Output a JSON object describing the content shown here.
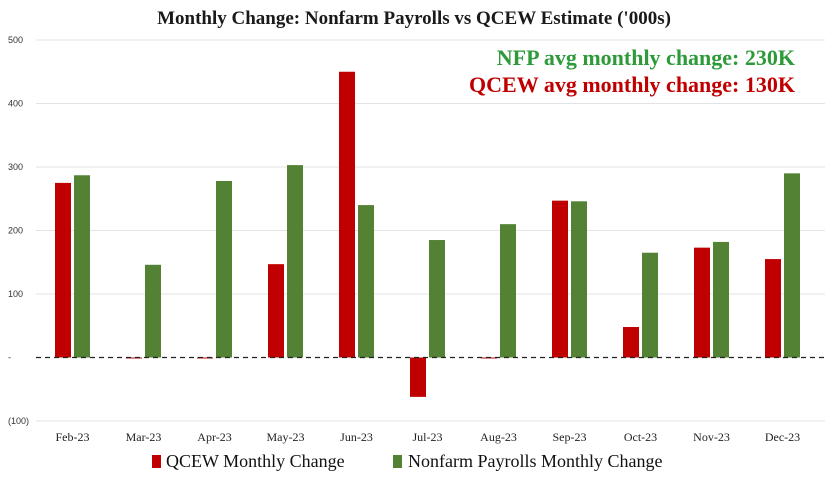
{
  "chart_data": {
    "type": "bar",
    "title": "Monthly Change: Nonfarm Payrolls vs QCEW Estimate ('000s)",
    "categories": [
      "Feb-23",
      "Mar-23",
      "Apr-23",
      "May-23",
      "Jun-23",
      "Jul-23",
      "Aug-23",
      "Sep-23",
      "Oct-23",
      "Nov-23",
      "Dec-23"
    ],
    "series": [
      {
        "name": "QCEW Monthly Change",
        "color": "#c00000",
        "values": [
          275,
          0,
          0,
          147,
          450,
          -62,
          0,
          247,
          48,
          173,
          155
        ]
      },
      {
        "name": "Nonfarm Payrolls Monthly Change",
        "color": "#548235",
        "values": [
          287,
          146,
          278,
          303,
          240,
          185,
          210,
          246,
          165,
          182,
          290
        ]
      }
    ],
    "ylim": [
      -100,
      500
    ],
    "yticks": [
      -100,
      0,
      100,
      200,
      300,
      400,
      500
    ],
    "ytick_labels": [
      "(100)",
      "-",
      "100",
      "200",
      "300",
      "400",
      "500"
    ],
    "grid": true,
    "legend": "bottom",
    "annotations": [
      {
        "text": "NFP avg monthly change: 230K",
        "color": "#2e9a3a"
      },
      {
        "text": "QCEW avg monthly change: 130K",
        "color": "#c00000"
      }
    ]
  }
}
